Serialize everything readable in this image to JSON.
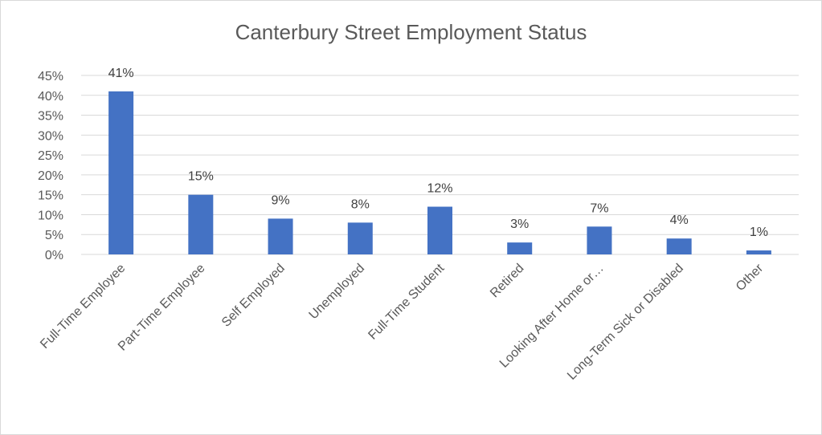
{
  "chart_data": {
    "type": "bar",
    "title": "Canterbury Street Employment Status",
    "xlabel": "",
    "ylabel": "",
    "categories": [
      "Full-Time Employee",
      "Part-Time Employee",
      "Self Employed",
      "Unemployed",
      "Full-Time Student",
      "Retired",
      "Looking After Home or…",
      "Long-Term Sick or Disabled",
      "Other"
    ],
    "values": [
      41,
      15,
      9,
      8,
      12,
      3,
      7,
      4,
      1
    ],
    "data_labels": [
      "41%",
      "15%",
      "9%",
      "8%",
      "12%",
      "3%",
      "7%",
      "4%",
      "1%"
    ],
    "ylim": [
      0,
      45
    ],
    "yticks": [
      0,
      5,
      10,
      15,
      20,
      25,
      30,
      35,
      40,
      45
    ],
    "ytick_labels": [
      "0%",
      "5%",
      "10%",
      "15%",
      "20%",
      "25%",
      "30%",
      "35%",
      "40%",
      "45%"
    ],
    "grid": true,
    "legend": "none",
    "bar_color": "#4472c4",
    "grid_color": "#d9d9d9"
  }
}
